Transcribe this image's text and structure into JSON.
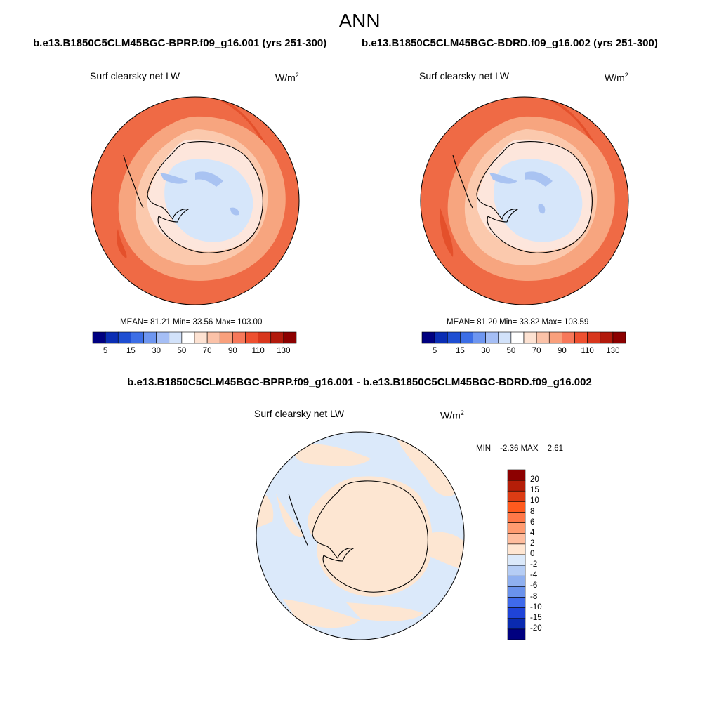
{
  "page": {
    "title": "ANN"
  },
  "cases": {
    "left": "b.e13.B1850C5CLM45BGC-BPRP.f09_g16.001 (yrs 251-300)",
    "right": "b.e13.B1850C5CLM45BGC-BDRD.f09_g16.002 (yrs 251-300)",
    "diff": "b.e13.B1850C5CLM45BGC-BPRP.f09_g16.001 - b.e13.B1850C5CLM45BGC-BDRD.f09_g16.002"
  },
  "panels": [
    {
      "id": "left",
      "variable": "Surf clearsky net LW",
      "units_base": "W/m",
      "units_exp": "2",
      "stats_text": "MEAN=  81.21  Min=  33.56  Max= 103.00",
      "mean": 81.21,
      "min": 33.56,
      "max": 103.0
    },
    {
      "id": "right",
      "variable": "Surf clearsky net LW",
      "units_base": "W/m",
      "units_exp": "2",
      "stats_text": "MEAN=  81.20  Min=  33.82  Max= 103.59",
      "mean": 81.2,
      "min": 33.82,
      "max": 103.59
    },
    {
      "id": "diff",
      "variable": "Surf clearsky net LW",
      "units_base": "W/m",
      "units_exp": "2",
      "stats_text": "MIN =  -2.36 MAX =   2.61",
      "min": -2.36,
      "max": 2.61
    }
  ],
  "colorbars": {
    "absolute": {
      "orientation": "horizontal",
      "labels": [
        "5",
        "15",
        "30",
        "50",
        "70",
        "90",
        "110",
        "130"
      ],
      "colors": [
        "#000080",
        "#0a2db4",
        "#1e4ed2",
        "#3c6ee6",
        "#6e96f0",
        "#a5bef5",
        "#d2e2fa",
        "#ffffff",
        "#fde2d2",
        "#fbc2a8",
        "#f9a07c",
        "#f7785a",
        "#ee5030",
        "#d8361c",
        "#b21a0c",
        "#8c0000"
      ]
    },
    "difference": {
      "orientation": "vertical",
      "labels": [
        "20",
        "15",
        "10",
        "8",
        "6",
        "4",
        "2",
        "0",
        "-2",
        "-4",
        "-6",
        "-8",
        "-10",
        "-15",
        "-20"
      ],
      "colors": [
        "#8c0000",
        "#b41e08",
        "#dc3c14",
        "#ff5a1e",
        "#ff7848",
        "#ff9b70",
        "#ffbd9e",
        "#ffe6d2",
        "#dbe9fa",
        "#b5cdf5",
        "#8fb0f0",
        "#6a92ec",
        "#3f6aeb",
        "#1f44d8",
        "#0a2ab0",
        "#000080"
      ]
    }
  }
}
